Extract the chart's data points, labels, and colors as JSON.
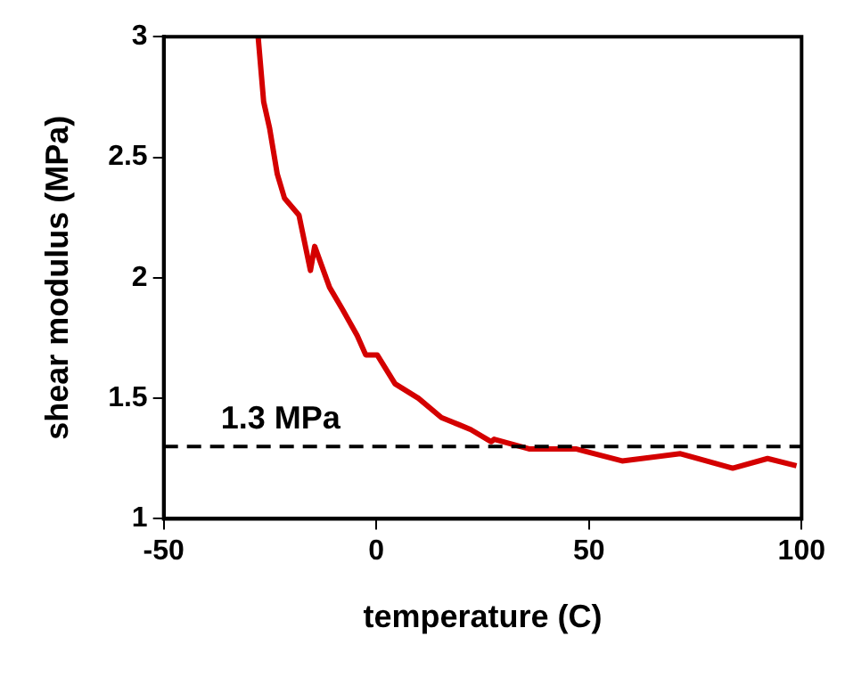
{
  "chart_data": {
    "type": "line",
    "xlabel": "temperature (C)",
    "ylabel": "shear modulus (MPa)",
    "series": [
      {
        "color": "#d40000",
        "x": [
          -27.8,
          -26.5,
          -25.1,
          -23.3,
          -21.6,
          -18.2,
          -15.5,
          -14.5,
          -11,
          -8,
          -4.5,
          -2.5,
          0.2,
          4.4,
          9.9,
          15.3,
          19.5,
          22.2,
          27,
          27.7,
          35.9,
          46.9,
          57.8,
          71.5,
          83.8,
          92,
          98.8
        ],
        "values": [
          3,
          2.73,
          2.62,
          2.43,
          2.33,
          2.26,
          2.03,
          2.13,
          1.96,
          1.87,
          1.76,
          1.68,
          1.68,
          1.56,
          1.5,
          1.42,
          1.39,
          1.37,
          1.32,
          1.33,
          1.29,
          1.29,
          1.24,
          1.27,
          1.21,
          1.25,
          1.22
        ]
      }
    ],
    "xlim": [
      -50,
      100
    ],
    "xticks": [
      -50,
      0,
      50,
      100
    ],
    "ylim": [
      1,
      3
    ],
    "yticks": [
      1,
      1.5,
      2,
      2.5,
      3
    ],
    "ref_lines": [
      {
        "axis": "y",
        "value": 1.3,
        "label": "1.3 MPa",
        "color": "#000000",
        "line_style": "dashed"
      }
    ],
    "grid": false,
    "legend": false,
    "marker": "none",
    "line_style": "solid"
  }
}
